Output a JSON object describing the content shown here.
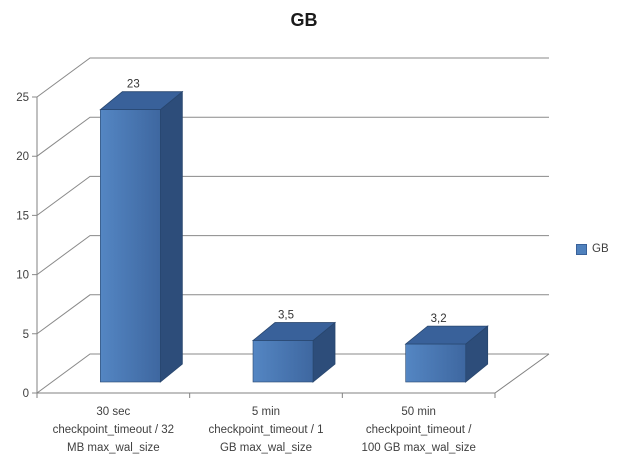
{
  "title": "GB",
  "legend": {
    "items": [
      {
        "label": "GB",
        "color": "#4f81bd"
      }
    ]
  },
  "chart_data": {
    "type": "bar",
    "style": "3d-column",
    "title": "GB",
    "categories": [
      "30 sec checkpoint_timeout / 32 MB max_wal_size",
      "5 min checkpoint_timeout / 1 GB max_wal_size",
      "50 min checkpoint_timeout / 100 GB max_wal_size"
    ],
    "category_lines": [
      [
        "30 sec",
        "checkpoint_timeout / 32",
        "MB max_wal_size"
      ],
      [
        "5 min",
        "checkpoint_timeout / 1",
        "GB max_wal_size"
      ],
      [
        "50 min",
        "checkpoint_timeout /",
        "100 GB max_wal_size"
      ]
    ],
    "series": [
      {
        "name": "GB",
        "values": [
          23,
          3.5,
          3.2
        ]
      }
    ],
    "value_labels": [
      "23",
      "3,5",
      "3,2"
    ],
    "ylim": [
      0,
      25
    ],
    "yticks": [
      0,
      5,
      10,
      15,
      20,
      25
    ],
    "grid": true,
    "legend_position": "right",
    "xlabel": "",
    "ylabel": ""
  },
  "colors": {
    "bar_front_light": "#5486c3",
    "bar_front_dark": "#3e67a0",
    "bar_top": "#39619a",
    "bar_side": "#2d4d7a",
    "bar_edge": "#28466e",
    "gridline": "#8a8a8a",
    "axis": "#828282",
    "tick_text": "#3f3f3f",
    "data_label_text": "#333333",
    "background": "#ffffff"
  }
}
